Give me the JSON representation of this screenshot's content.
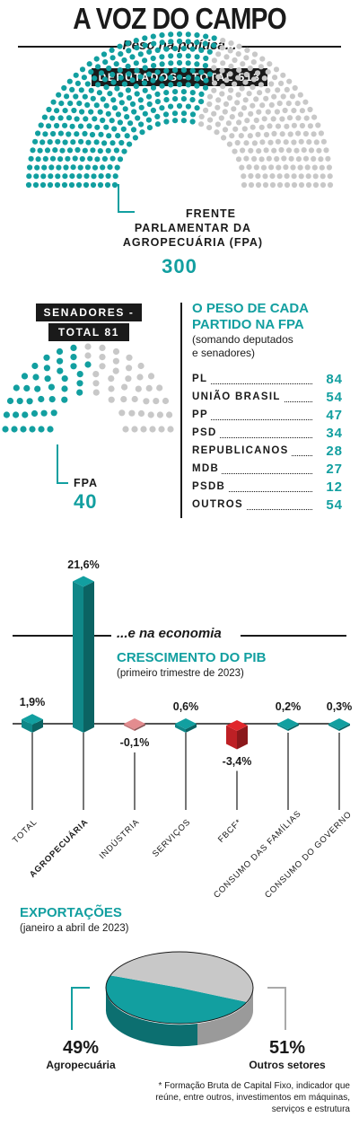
{
  "header": {
    "title": "A VOZ DO CAMPO",
    "subtitle": "Peso na política..."
  },
  "deputies": {
    "label": "DEPUTADOS - TOTAL 513",
    "total": 513,
    "fpa": 300,
    "fpa_label_1": "FRENTE",
    "fpa_label_2": "PARLAMENTAR DA",
    "fpa_label_3": "AGROPECUÁRIA (FPA)",
    "fpa_value": "300"
  },
  "senators": {
    "label_1": "SENADORES -",
    "label_2": "TOTAL 81",
    "total": 81,
    "fpa": 40,
    "fpa_label": "FPA",
    "fpa_value": "40"
  },
  "parties": {
    "heading_1": "O PESO DE CADA",
    "heading_2": "PARTIDO NA FPA",
    "note_1": "(somando deputados",
    "note_2": "e senadores)",
    "rows": [
      {
        "name": "PL",
        "value": "84"
      },
      {
        "name": "UNIÃO BRASIL",
        "value": "54"
      },
      {
        "name": "PP",
        "value": "47"
      },
      {
        "name": "PSD",
        "value": "34"
      },
      {
        "name": "REPUBLICANOS",
        "value": "28"
      },
      {
        "name": "MDB",
        "value": "27"
      },
      {
        "name": "PSDB",
        "value": "12"
      },
      {
        "name": "OUTROS",
        "value": "54"
      }
    ]
  },
  "economy": {
    "title": "...e na economia",
    "gdp_heading": "CRESCIMENTO DO PIB",
    "gdp_note": "(primeiro trimestre de 2023)",
    "footnote_1": "* Formação Bruta de Capital Fixo, indicador que",
    "footnote_2": "reúne, entre outros, investimentos em máquinas,",
    "footnote_3": "serviços e estrutura"
  },
  "chart_data": [
    {
      "type": "bar",
      "categories": [
        "TOTAL",
        "AGROPECUÁRIA",
        "INDÚSTRIA",
        "SERVIÇOS",
        "FBCF*",
        "CONSUMO DAS FAMÍLIAS",
        "CONSUMO DO GOVERNO"
      ],
      "values": [
        1.9,
        21.6,
        -0.1,
        0.6,
        -3.4,
        0.2,
        0.3
      ],
      "value_labels": [
        "1,9%",
        "21,6%",
        "-0,1%",
        "0,6%",
        "-3,4%",
        "0,2%",
        "0,3%"
      ],
      "title": "CRESCIMENTO DO PIB"
    },
    {
      "type": "pie",
      "title": "EXPORTAÇÕES",
      "categories": [
        "Agropecuária",
        "Outros setores"
      ],
      "values": [
        49,
        51
      ],
      "value_labels": [
        "49%",
        "51%"
      ]
    }
  ],
  "exports": {
    "heading": "EXPORTAÇÕES",
    "note": "(janeiro a abril de 2023)",
    "agro_pct": "49%",
    "agro_label": "Agropecuária",
    "other_pct": "51%",
    "other_label": "Outros setores"
  },
  "colors": {
    "teal": "#129fa0",
    "gray": "#c8c8c8",
    "red": "#e0262b",
    "pink": "#e38c8f",
    "dark": "#1a1a1a"
  }
}
